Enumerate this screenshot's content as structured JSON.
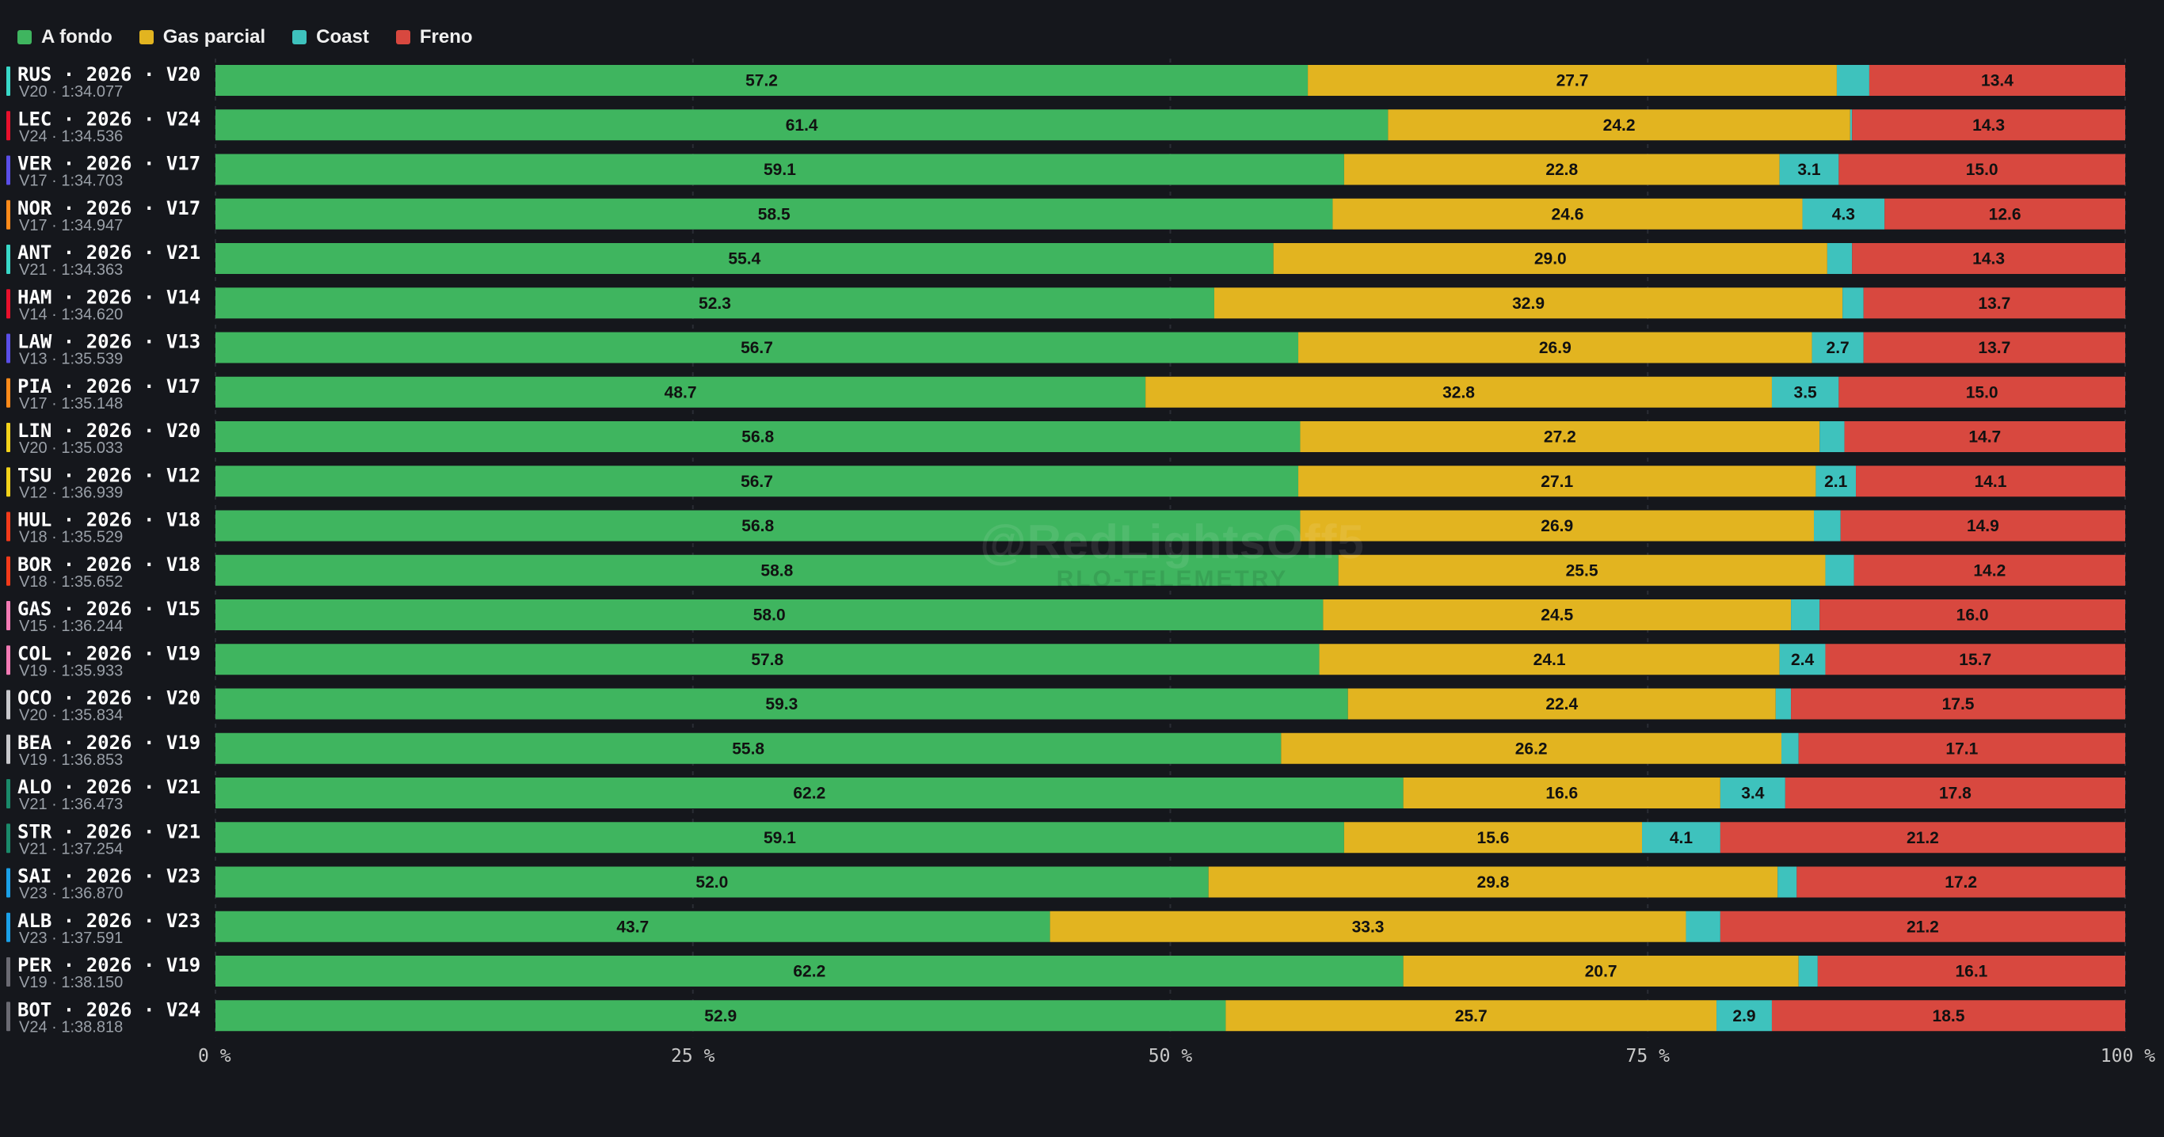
{
  "legend": [
    {
      "label": "A fondo",
      "color": "#3fb55f"
    },
    {
      "label": "Gas parcial",
      "color": "#e2b420"
    },
    {
      "label": "Coast",
      "color": "#3ec2bd"
    },
    {
      "label": "Freno",
      "color": "#d8483f"
    }
  ],
  "watermark": {
    "main": "@RedLightsOff5",
    "sub": "RLO-TELEMETRY"
  },
  "chart_data": {
    "type": "bar",
    "orientation": "horizontal",
    "stacked": true,
    "x_ticks": [
      "0 %",
      "25 %",
      "50 %",
      "75 %",
      "100 %"
    ],
    "xlim": [
      0,
      100
    ],
    "grid": true,
    "legend_position": "top-left",
    "categories": [
      {
        "code": "RUS · 2026 · V20",
        "sub": "V20 · 1:34.077",
        "color": "#38d8c8"
      },
      {
        "code": "LEC · 2026 · V24",
        "sub": "V24 · 1:34.536",
        "color": "#e8102c"
      },
      {
        "code": "VER · 2026 · V17",
        "sub": "V17 · 1:34.703",
        "color": "#5a4ee8"
      },
      {
        "code": "NOR · 2026 · V17",
        "sub": "V17 · 1:34.947",
        "color": "#ff8a1a"
      },
      {
        "code": "ANT · 2026 · V21",
        "sub": "V21 · 1:34.363",
        "color": "#38d8c8"
      },
      {
        "code": "HAM · 2026 · V14",
        "sub": "V14 · 1:34.620",
        "color": "#e8102c"
      },
      {
        "code": "LAW · 2026 · V13",
        "sub": "V13 · 1:35.539",
        "color": "#5a4ee8"
      },
      {
        "code": "PIA · 2026 · V17",
        "sub": "V17 · 1:35.148",
        "color": "#ff8a1a"
      },
      {
        "code": "LIN · 2026 · V20",
        "sub": "V20 · 1:35.033",
        "color": "#f2d21a"
      },
      {
        "code": "TSU · 2026 · V12",
        "sub": "V12 · 1:36.939",
        "color": "#f2d21a"
      },
      {
        "code": "HUL · 2026 · V18",
        "sub": "V18 · 1:35.529",
        "color": "#f23a1a"
      },
      {
        "code": "BOR · 2026 · V18",
        "sub": "V18 · 1:35.652",
        "color": "#f23a1a"
      },
      {
        "code": "GAS · 2026 · V15",
        "sub": "V15 · 1:36.244",
        "color": "#f27ab4"
      },
      {
        "code": "COL · 2026 · V19",
        "sub": "V19 · 1:35.933",
        "color": "#f27ab4"
      },
      {
        "code": "OCO · 2026 · V20",
        "sub": "V20 · 1:35.834",
        "color": "#c8c8cc"
      },
      {
        "code": "BEA · 2026 · V19",
        "sub": "V19 · 1:36.853",
        "color": "#c8c8cc"
      },
      {
        "code": "ALO · 2026 · V21",
        "sub": "V21 · 1:36.473",
        "color": "#1a8a6a"
      },
      {
        "code": "STR · 2026 · V21",
        "sub": "V21 · 1:37.254",
        "color": "#1a8a6a"
      },
      {
        "code": "SAI · 2026 · V23",
        "sub": "V23 · 1:36.870",
        "color": "#1aa0e8"
      },
      {
        "code": "ALB · 2026 · V23",
        "sub": "V23 · 1:37.591",
        "color": "#1aa0e8"
      },
      {
        "code": "PER · 2026 · V19",
        "sub": "V19 · 1:38.150",
        "color": "#6a6a72"
      },
      {
        "code": "BOT · 2026 · V24",
        "sub": "V24 · 1:38.818",
        "color": "#6a6a72"
      }
    ],
    "series": [
      {
        "name": "A fondo",
        "color": "#3fb55f",
        "values": [
          57.2,
          61.4,
          59.1,
          58.5,
          55.4,
          52.3,
          56.7,
          48.7,
          56.8,
          56.7,
          56.8,
          58.8,
          58.0,
          57.8,
          59.3,
          55.8,
          62.2,
          59.1,
          52.0,
          43.7,
          62.2,
          52.9
        ]
      },
      {
        "name": "Gas parcial",
        "color": "#e2b420",
        "values": [
          27.7,
          24.2,
          22.8,
          24.6,
          29.0,
          32.9,
          26.9,
          32.8,
          27.2,
          27.1,
          26.9,
          25.5,
          24.5,
          24.1,
          22.4,
          26.2,
          16.6,
          15.6,
          29.8,
          33.3,
          20.7,
          25.7
        ]
      },
      {
        "name": "Coast",
        "color": "#3ec2bd",
        "values": [
          1.7,
          0.1,
          3.1,
          4.3,
          1.3,
          1.1,
          2.7,
          3.5,
          1.3,
          2.1,
          1.4,
          1.5,
          1.5,
          2.4,
          0.8,
          0.9,
          3.4,
          4.1,
          1.0,
          1.8,
          1.0,
          2.9
        ]
      },
      {
        "name": "Freno",
        "color": "#d8483f",
        "values": [
          13.4,
          14.3,
          15.0,
          12.6,
          14.3,
          13.7,
          13.7,
          15.0,
          14.7,
          14.1,
          14.9,
          14.2,
          16.0,
          15.7,
          17.5,
          17.1,
          17.8,
          21.2,
          17.2,
          21.2,
          16.1,
          18.5
        ]
      }
    ]
  }
}
